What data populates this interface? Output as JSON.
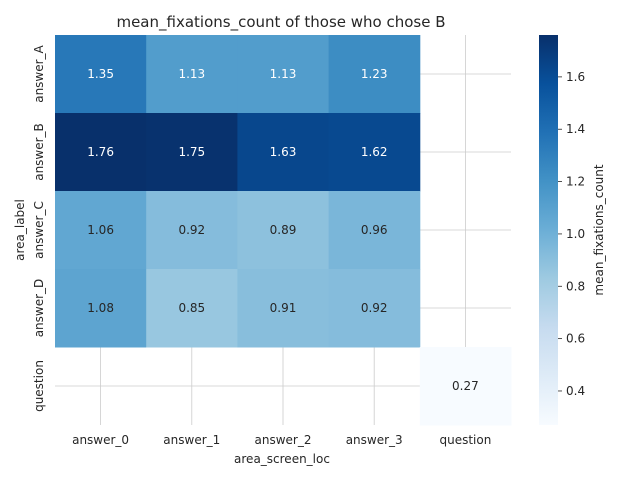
{
  "chart_data": {
    "type": "heatmap",
    "title": "mean_fixations_count of those who chose B",
    "xlabel": "area_screen_loc",
    "ylabel": "area_label",
    "x_categories": [
      "answer_0",
      "answer_1",
      "answer_2",
      "answer_3",
      "question"
    ],
    "y_categories": [
      "answer_A",
      "answer_B",
      "answer_C",
      "answer_D",
      "question"
    ],
    "values": [
      [
        1.35,
        1.13,
        1.13,
        1.23,
        null
      ],
      [
        1.76,
        1.75,
        1.63,
        1.62,
        null
      ],
      [
        1.06,
        0.92,
        0.89,
        0.96,
        null
      ],
      [
        1.08,
        0.85,
        0.91,
        0.92,
        null
      ],
      [
        null,
        null,
        null,
        null,
        0.27
      ]
    ],
    "value_labels": [
      [
        "1.35",
        "1.13",
        "1.13",
        "1.23",
        ""
      ],
      [
        "1.76",
        "1.75",
        "1.63",
        "1.62",
        ""
      ],
      [
        "1.06",
        "0.92",
        "0.89",
        "0.96",
        ""
      ],
      [
        "1.08",
        "0.85",
        "0.91",
        "0.92",
        ""
      ],
      [
        "",
        "",
        "",
        "",
        "0.27"
      ]
    ],
    "colormap": "Blues",
    "vmin": 0.27,
    "vmax": 1.76,
    "colorbar": {
      "label": "mean_fixations_count",
      "ticks": [
        0.4,
        0.6,
        0.8,
        1.0,
        1.2,
        1.4,
        1.6
      ],
      "tick_labels": [
        "0.4",
        "0.6",
        "0.8",
        "1.0",
        "1.2",
        "1.4",
        "1.6"
      ]
    },
    "grid": true
  }
}
